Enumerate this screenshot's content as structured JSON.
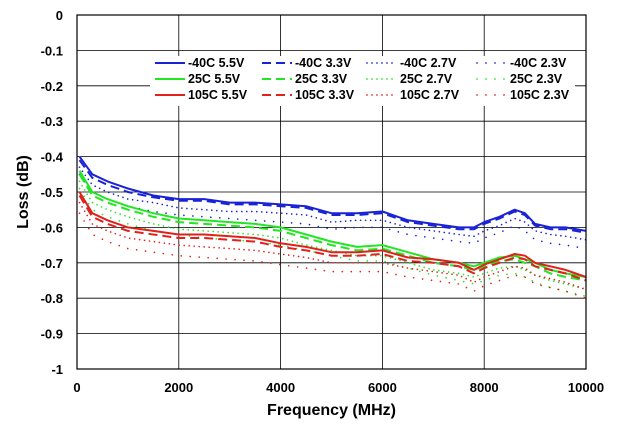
{
  "chart_data": {
    "type": "line",
    "title": "",
    "xlabel": "Frequency (MHz)",
    "ylabel": "Loss (dB)",
    "xlim": [
      0,
      10000
    ],
    "ylim": [
      -1,
      0
    ],
    "xticks": [
      "0",
      "2000",
      "4000",
      "6000",
      "8000",
      "10000"
    ],
    "yticks": [
      "0",
      "-0.1",
      "-0.2",
      "-0.3",
      "-0.4",
      "-0.5",
      "-0.6",
      "-0.7",
      "-0.8",
      "-0.9",
      "-1"
    ],
    "grid": true,
    "legend": "top-right",
    "colors": {
      "-40C": "#1a22d6",
      "25C": "#22e622",
      "105C": "#e0211c"
    },
    "x": [
      50,
      300,
      600,
      1000,
      1500,
      2000,
      2500,
      3000,
      3500,
      4000,
      4500,
      5000,
      5500,
      6000,
      6500,
      7000,
      7500,
      7800,
      8000,
      8300,
      8600,
      8800,
      9000,
      9300,
      9600,
      10000
    ],
    "series": [
      {
        "name": "-40C 5.5V",
        "temp": "-40C",
        "style": "solid",
        "values": [
          -0.4,
          -0.45,
          -0.47,
          -0.49,
          -0.51,
          -0.52,
          -0.52,
          -0.53,
          -0.53,
          -0.535,
          -0.54,
          -0.56,
          -0.56,
          -0.555,
          -0.58,
          -0.59,
          -0.6,
          -0.6,
          -0.585,
          -0.57,
          -0.55,
          -0.56,
          -0.59,
          -0.6,
          -0.6,
          -0.61
        ]
      },
      {
        "name": "-40C 3.3V",
        "temp": "-40C",
        "style": "dash",
        "values": [
          -0.41,
          -0.46,
          -0.48,
          -0.5,
          -0.515,
          -0.525,
          -0.525,
          -0.535,
          -0.535,
          -0.54,
          -0.545,
          -0.565,
          -0.565,
          -0.56,
          -0.585,
          -0.595,
          -0.605,
          -0.605,
          -0.59,
          -0.575,
          -0.555,
          -0.565,
          -0.595,
          -0.605,
          -0.605,
          -0.615
        ]
      },
      {
        "name": "-40C 2.7V",
        "temp": "-40C",
        "style": "dot-dense",
        "values": [
          -0.43,
          -0.48,
          -0.5,
          -0.52,
          -0.53,
          -0.545,
          -0.55,
          -0.555,
          -0.555,
          -0.56,
          -0.565,
          -0.585,
          -0.58,
          -0.58,
          -0.6,
          -0.61,
          -0.62,
          -0.625,
          -0.61,
          -0.595,
          -0.575,
          -0.585,
          -0.61,
          -0.62,
          -0.625,
          -0.635
        ]
      },
      {
        "name": "-40C 2.3V",
        "temp": "-40C",
        "style": "dot-sparse",
        "values": [
          -0.45,
          -0.5,
          -0.52,
          -0.54,
          -0.555,
          -0.565,
          -0.57,
          -0.575,
          -0.58,
          -0.585,
          -0.59,
          -0.605,
          -0.6,
          -0.6,
          -0.62,
          -0.63,
          -0.64,
          -0.645,
          -0.63,
          -0.615,
          -0.595,
          -0.61,
          -0.635,
          -0.645,
          -0.65,
          -0.66
        ]
      },
      {
        "name": "25C 5.5V",
        "temp": "25C",
        "style": "solid",
        "values": [
          -0.44,
          -0.5,
          -0.52,
          -0.54,
          -0.56,
          -0.575,
          -0.58,
          -0.585,
          -0.59,
          -0.6,
          -0.62,
          -0.64,
          -0.655,
          -0.65,
          -0.67,
          -0.69,
          -0.7,
          -0.71,
          -0.7,
          -0.685,
          -0.68,
          -0.69,
          -0.7,
          -0.72,
          -0.73,
          -0.74
        ]
      },
      {
        "name": "25C 3.3V",
        "temp": "25C",
        "style": "dash",
        "values": [
          -0.45,
          -0.51,
          -0.53,
          -0.55,
          -0.57,
          -0.585,
          -0.59,
          -0.595,
          -0.6,
          -0.61,
          -0.63,
          -0.65,
          -0.665,
          -0.66,
          -0.68,
          -0.7,
          -0.71,
          -0.72,
          -0.71,
          -0.695,
          -0.69,
          -0.7,
          -0.71,
          -0.73,
          -0.74,
          -0.75
        ]
      },
      {
        "name": "25C 2.7V",
        "temp": "25C",
        "style": "dot-dense",
        "values": [
          -0.47,
          -0.53,
          -0.55,
          -0.57,
          -0.59,
          -0.605,
          -0.61,
          -0.615,
          -0.62,
          -0.63,
          -0.65,
          -0.665,
          -0.68,
          -0.68,
          -0.7,
          -0.72,
          -0.73,
          -0.74,
          -0.73,
          -0.715,
          -0.71,
          -0.72,
          -0.735,
          -0.75,
          -0.76,
          -0.775
        ]
      },
      {
        "name": "25C 2.3V",
        "temp": "25C",
        "style": "dot-sparse",
        "values": [
          -0.49,
          -0.55,
          -0.57,
          -0.59,
          -0.61,
          -0.62,
          -0.63,
          -0.635,
          -0.64,
          -0.65,
          -0.665,
          -0.68,
          -0.695,
          -0.695,
          -0.715,
          -0.735,
          -0.75,
          -0.76,
          -0.75,
          -0.735,
          -0.73,
          -0.74,
          -0.755,
          -0.77,
          -0.78,
          -0.795
        ]
      },
      {
        "name": "105C 5.5V",
        "temp": "105C",
        "style": "solid",
        "values": [
          -0.5,
          -0.56,
          -0.58,
          -0.6,
          -0.61,
          -0.62,
          -0.62,
          -0.625,
          -0.63,
          -0.645,
          -0.655,
          -0.67,
          -0.67,
          -0.665,
          -0.685,
          -0.69,
          -0.7,
          -0.72,
          -0.705,
          -0.69,
          -0.675,
          -0.68,
          -0.7,
          -0.71,
          -0.72,
          -0.74
        ]
      },
      {
        "name": "105C 3.3V",
        "temp": "105C",
        "style": "dash",
        "values": [
          -0.51,
          -0.57,
          -0.59,
          -0.61,
          -0.62,
          -0.63,
          -0.63,
          -0.635,
          -0.64,
          -0.655,
          -0.665,
          -0.68,
          -0.68,
          -0.675,
          -0.695,
          -0.7,
          -0.71,
          -0.73,
          -0.715,
          -0.7,
          -0.685,
          -0.69,
          -0.71,
          -0.72,
          -0.73,
          -0.75
        ]
      },
      {
        "name": "105C 2.7V",
        "temp": "105C",
        "style": "dot-dense",
        "values": [
          -0.53,
          -0.59,
          -0.61,
          -0.63,
          -0.64,
          -0.65,
          -0.655,
          -0.66,
          -0.665,
          -0.675,
          -0.685,
          -0.7,
          -0.7,
          -0.7,
          -0.715,
          -0.725,
          -0.735,
          -0.755,
          -0.74,
          -0.725,
          -0.71,
          -0.715,
          -0.735,
          -0.745,
          -0.755,
          -0.775
        ]
      },
      {
        "name": "105C 2.3V",
        "temp": "105C",
        "style": "dot-sparse",
        "values": [
          -0.56,
          -0.62,
          -0.64,
          -0.66,
          -0.67,
          -0.68,
          -0.685,
          -0.69,
          -0.695,
          -0.705,
          -0.715,
          -0.725,
          -0.725,
          -0.725,
          -0.74,
          -0.75,
          -0.76,
          -0.78,
          -0.765,
          -0.75,
          -0.735,
          -0.74,
          -0.76,
          -0.77,
          -0.78,
          -0.8
        ]
      }
    ]
  }
}
